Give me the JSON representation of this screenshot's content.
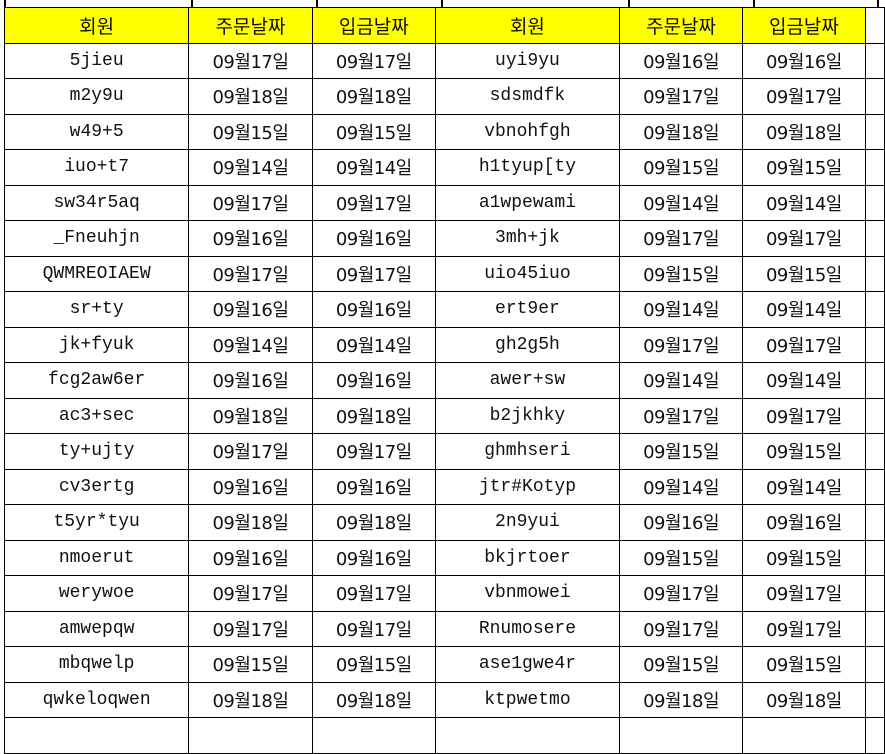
{
  "header": [
    "회원",
    "주문날짜",
    "입금날짜",
    "회원",
    "주문날짜",
    "입금날짜"
  ],
  "header_bg": "#ffff00",
  "rows": [
    [
      "5jieu",
      "09월17일",
      "09월17일",
      "uyi9yu",
      "09월16일",
      "09월16일"
    ],
    [
      "m2y9u",
      "09월18일",
      "09월18일",
      "sdsmdfk",
      "09월17일",
      "09월17일"
    ],
    [
      "w49+5",
      "09월15일",
      "09월15일",
      "vbnohfgh",
      "09월18일",
      "09월18일"
    ],
    [
      "iuo+t7",
      "09월14일",
      "09월14일",
      "h1tyup[ty",
      "09월15일",
      "09월15일"
    ],
    [
      "sw34r5aq",
      "09월17일",
      "09월17일",
      "a1wpewami",
      "09월14일",
      "09월14일"
    ],
    [
      "_Fneuhjn",
      "09월16일",
      "09월16일",
      "3mh+jk",
      "09월17일",
      "09월17일"
    ],
    [
      "QWMREOIAEW",
      "09월17일",
      "09월17일",
      "uio45iuo",
      "09월15일",
      "09월15일"
    ],
    [
      "sr+ty",
      "09월16일",
      "09월16일",
      "ert9er",
      "09월14일",
      "09월14일"
    ],
    [
      "jk+fyuk",
      "09월14일",
      "09월14일",
      "gh2g5h",
      "09월17일",
      "09월17일"
    ],
    [
      "fcg2aw6er",
      "09월16일",
      "09월16일",
      "awer+sw",
      "09월14일",
      "09월14일"
    ],
    [
      "ac3+sec",
      "09월18일",
      "09월18일",
      "b2jkhky",
      "09월17일",
      "09월17일"
    ],
    [
      "ty+ujty",
      "09월17일",
      "09월17일",
      "ghmhseri",
      "09월15일",
      "09월15일"
    ],
    [
      "cv3ertg",
      "09월16일",
      "09월16일",
      "jtr#Kotyp",
      "09월14일",
      "09월14일"
    ],
    [
      "t5yr*tyu",
      "09월18일",
      "09월18일",
      "2n9yui",
      "09월16일",
      "09월16일"
    ],
    [
      "nmoerut",
      "09월16일",
      "09월16일",
      "bkjrtoer",
      "09월15일",
      "09월15일"
    ],
    [
      "werywoe",
      "09월17일",
      "09월17일",
      "vbnmowei",
      "09월17일",
      "09월17일"
    ],
    [
      "amwepqw",
      "09월17일",
      "09월17일",
      "Rnumosere",
      "09월17일",
      "09월17일"
    ],
    [
      "mbqwelp",
      "09월15일",
      "09월15일",
      "ase1gwe4r",
      "09월15일",
      "09월15일"
    ],
    [
      "qwkeloqwen",
      "09월18일",
      "09월18일",
      "ktpwetmo",
      "09월18일",
      "09월18일"
    ]
  ]
}
